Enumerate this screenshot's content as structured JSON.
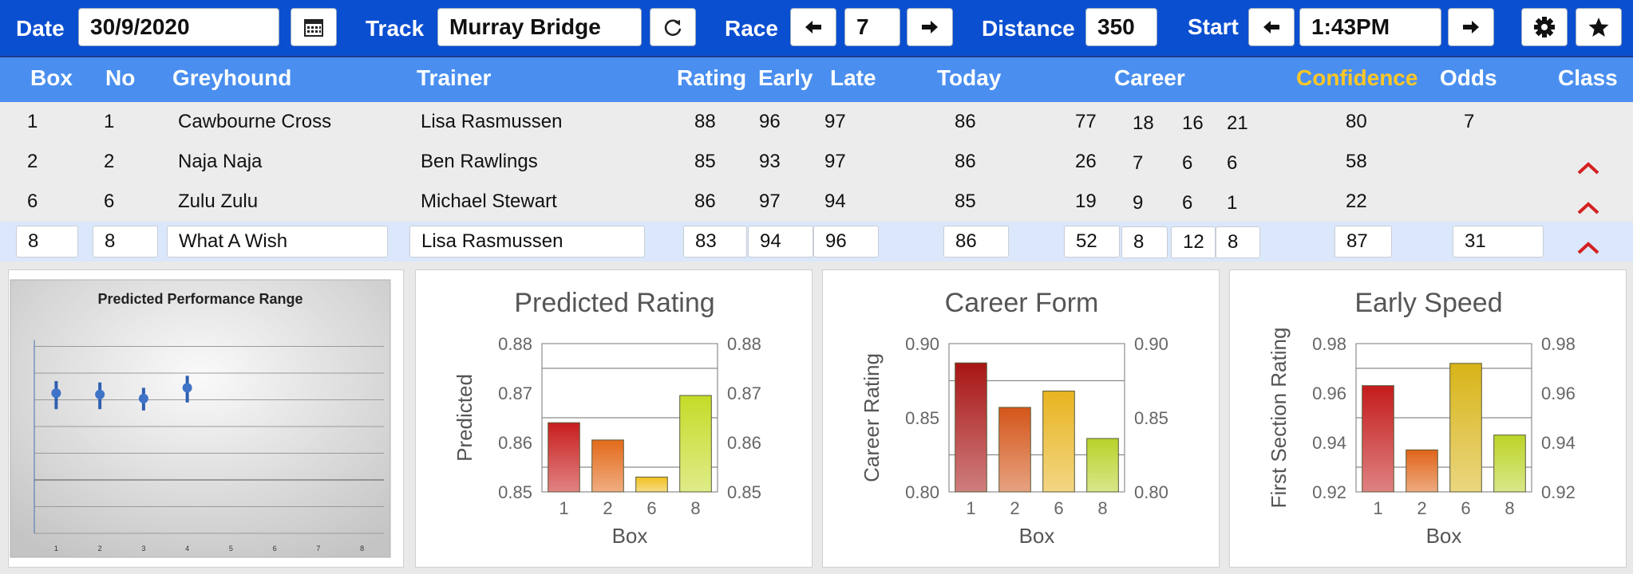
{
  "toolbar": {
    "date_label": "Date",
    "date_value": "30/9/2020",
    "track_label": "Track",
    "track_value": "Murray Bridge",
    "race_label": "Race",
    "race_value": "7",
    "distance_label": "Distance",
    "distance_value": "350",
    "start_label": "Start",
    "start_value": "1:43PM",
    "icons": [
      "calendar-icon",
      "refresh-icon",
      "arrow-left-icon",
      "arrow-right-icon",
      "gear-icon",
      "star-icon"
    ]
  },
  "table": {
    "headers": {
      "box": "Box",
      "no": "No",
      "greyhound": "Greyhound",
      "trainer": "Trainer",
      "rating": "Rating",
      "early": "Early",
      "late": "Late",
      "today": "Today",
      "career": "Career",
      "confidence": "Confidence",
      "odds": "Odds",
      "class": "Class"
    },
    "confidence_color": "#ffc726",
    "rows": [
      {
        "box": "1",
        "no": "1",
        "greyhound": "Cawbourne Cross",
        "trainer": "Lisa Rasmussen",
        "rating": "88",
        "early": "96",
        "late": "97",
        "today": "86",
        "c1": "77",
        "c2": "18",
        "c3": "16",
        "c4": "21",
        "confidence": "80",
        "odds": "7",
        "class_icon": ""
      },
      {
        "box": "2",
        "no": "2",
        "greyhound": "Naja Naja",
        "trainer": "Ben Rawlings",
        "rating": "85",
        "early": "93",
        "late": "97",
        "today": "86",
        "c1": "26",
        "c2": "7",
        "c3": "6",
        "c4": "6",
        "confidence": "58",
        "odds": "",
        "class_icon": "chevron-up-icon"
      },
      {
        "box": "6",
        "no": "6",
        "greyhound": "Zulu Zulu",
        "trainer": "Michael Stewart",
        "rating": "86",
        "early": "97",
        "late": "94",
        "today": "85",
        "c1": "19",
        "c2": "9",
        "c3": "6",
        "c4": "1",
        "confidence": "22",
        "odds": "",
        "class_icon": "chevron-up-icon"
      },
      {
        "box": "8",
        "no": "8",
        "greyhound": "What A Wish",
        "trainer": "Lisa Rasmussen",
        "rating": "83",
        "early": "94",
        "late": "96",
        "today": "86",
        "c1": "52",
        "c2": "8",
        "c3": "12",
        "c4": "8",
        "confidence": "87",
        "odds": "31",
        "class_icon": "chevron-up-icon"
      }
    ]
  },
  "chart_data": [
    {
      "type": "scatter",
      "title": "Predicted Performance Range",
      "x": [
        1,
        2,
        3,
        4
      ],
      "y": [
        0.45,
        0.44,
        0.41,
        0.49
      ],
      "y_low": [
        0.33,
        0.33,
        0.32,
        0.38
      ],
      "y_high": [
        0.54,
        0.53,
        0.49,
        0.58
      ],
      "x_ticks": [
        "1",
        "2",
        "3",
        "4",
        "5",
        "6",
        "7",
        "8"
      ],
      "xlim": [
        0.5,
        8.5
      ],
      "ylim": [
        -0.6,
        1.0
      ],
      "grid": true,
      "color": "#2f5fb0"
    },
    {
      "type": "bar",
      "title": "Predicted Rating",
      "xlabel": "Box",
      "ylabel": "Predicted",
      "categories": [
        "1",
        "2",
        "6",
        "8"
      ],
      "values": [
        0.864,
        0.8605,
        0.853,
        0.8695
      ],
      "ylim": [
        0.85,
        0.88
      ],
      "y_ticks": [
        "0.85",
        "0.86",
        "0.87",
        "0.88"
      ],
      "bar_colors": [
        "#c81e1e",
        "#e36a1a",
        "#f0c020",
        "#c4dc28"
      ]
    },
    {
      "type": "bar",
      "title": "Career Form",
      "xlabel": "Box",
      "ylabel": "Career Rating",
      "categories": [
        "1",
        "2",
        "6",
        "8"
      ],
      "values": [
        0.887,
        0.857,
        0.868,
        0.836
      ],
      "ylim": [
        0.8,
        0.9
      ],
      "y_ticks": [
        "0.80",
        "0.85",
        "0.90"
      ],
      "bar_colors": [
        "#a81515",
        "#d4561a",
        "#e8b420",
        "#b9d22a"
      ]
    },
    {
      "type": "bar",
      "title": "Early Speed",
      "xlabel": "Box",
      "ylabel": "First Section Rating",
      "categories": [
        "1",
        "2",
        "6",
        "8"
      ],
      "values": [
        0.963,
        0.937,
        0.972,
        0.943
      ],
      "ylim": [
        0.92,
        0.98
      ],
      "y_ticks": [
        "0.92",
        "0.94",
        "0.96",
        "0.98"
      ],
      "bar_colors": [
        "#c41c1c",
        "#e0641a",
        "#d8b418",
        "#bcd428"
      ]
    }
  ]
}
